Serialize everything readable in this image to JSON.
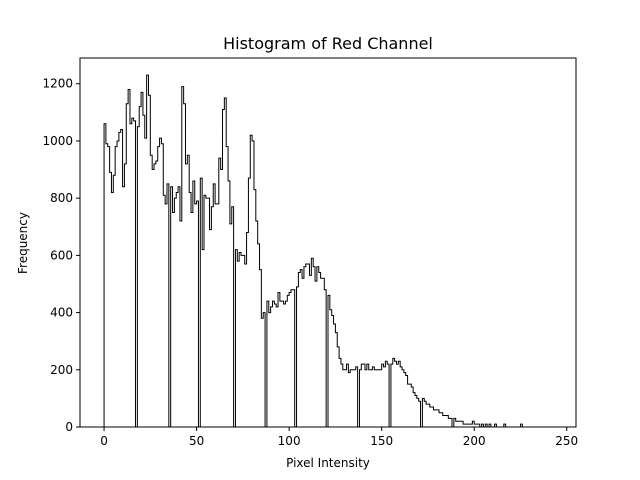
{
  "chart_data": {
    "type": "bar",
    "title": "Histogram of Red Channel",
    "xlabel": "Pixel Intensity",
    "ylabel": "Frequency",
    "xlim": [
      -13,
      255
    ],
    "ylim": [
      0,
      1290
    ],
    "xticks": [
      0,
      50,
      100,
      150,
      200,
      250
    ],
    "yticks": [
      0,
      200,
      400,
      600,
      800,
      1000,
      1200
    ],
    "grid": false,
    "line_color": "#000000",
    "bins_start": 0,
    "bin_width": 1,
    "values": [
      1060,
      990,
      980,
      890,
      820,
      880,
      980,
      1000,
      1030,
      1040,
      840,
      920,
      1130,
      1180,
      1060,
      1080,
      1070,
      0,
      1050,
      1120,
      1170,
      1090,
      1010,
      1230,
      1160,
      950,
      900,
      920,
      930,
      980,
      1010,
      990,
      810,
      780,
      850,
      0,
      840,
      750,
      800,
      820,
      840,
      720,
      1190,
      1130,
      920,
      950,
      820,
      750,
      860,
      780,
      790,
      0,
      870,
      620,
      810,
      800,
      800,
      690,
      770,
      850,
      780,
      780,
      940,
      900,
      1110,
      1150,
      980,
      860,
      710,
      770,
      0,
      620,
      580,
      610,
      600,
      600,
      570,
      680,
      870,
      1020,
      1000,
      830,
      720,
      640,
      550,
      380,
      400,
      0,
      440,
      400,
      420,
      440,
      430,
      420,
      470,
      440,
      440,
      430,
      440,
      460,
      470,
      480,
      480,
      0,
      490,
      540,
      550,
      520,
      560,
      570,
      570,
      530,
      590,
      560,
      510,
      560,
      540,
      520,
      520,
      480,
      0,
      460,
      410,
      390,
      360,
      330,
      280,
      240,
      220,
      200,
      200,
      220,
      190,
      200,
      200,
      200,
      210,
      0,
      200,
      220,
      220,
      200,
      220,
      200,
      200,
      210,
      200,
      200,
      200,
      200,
      220,
      210,
      230,
      220,
      0,
      220,
      240,
      230,
      220,
      230,
      210,
      200,
      190,
      180,
      150,
      150,
      140,
      120,
      110,
      100,
      90,
      0,
      100,
      90,
      80,
      80,
      70,
      70,
      60,
      60,
      60,
      50,
      50,
      40,
      40,
      40,
      30,
      30,
      0,
      30,
      20,
      20,
      20,
      20,
      10,
      10,
      10,
      10,
      10,
      20,
      10,
      10,
      10,
      0,
      10,
      0,
      10,
      0,
      10,
      0,
      0,
      10,
      0,
      0,
      0,
      0,
      10,
      0,
      0,
      0,
      0,
      0,
      0,
      0,
      0,
      10,
      0,
      0,
      0,
      0,
      0,
      0,
      0,
      0,
      0,
      0,
      0,
      0,
      0,
      0,
      0,
      0
    ]
  }
}
